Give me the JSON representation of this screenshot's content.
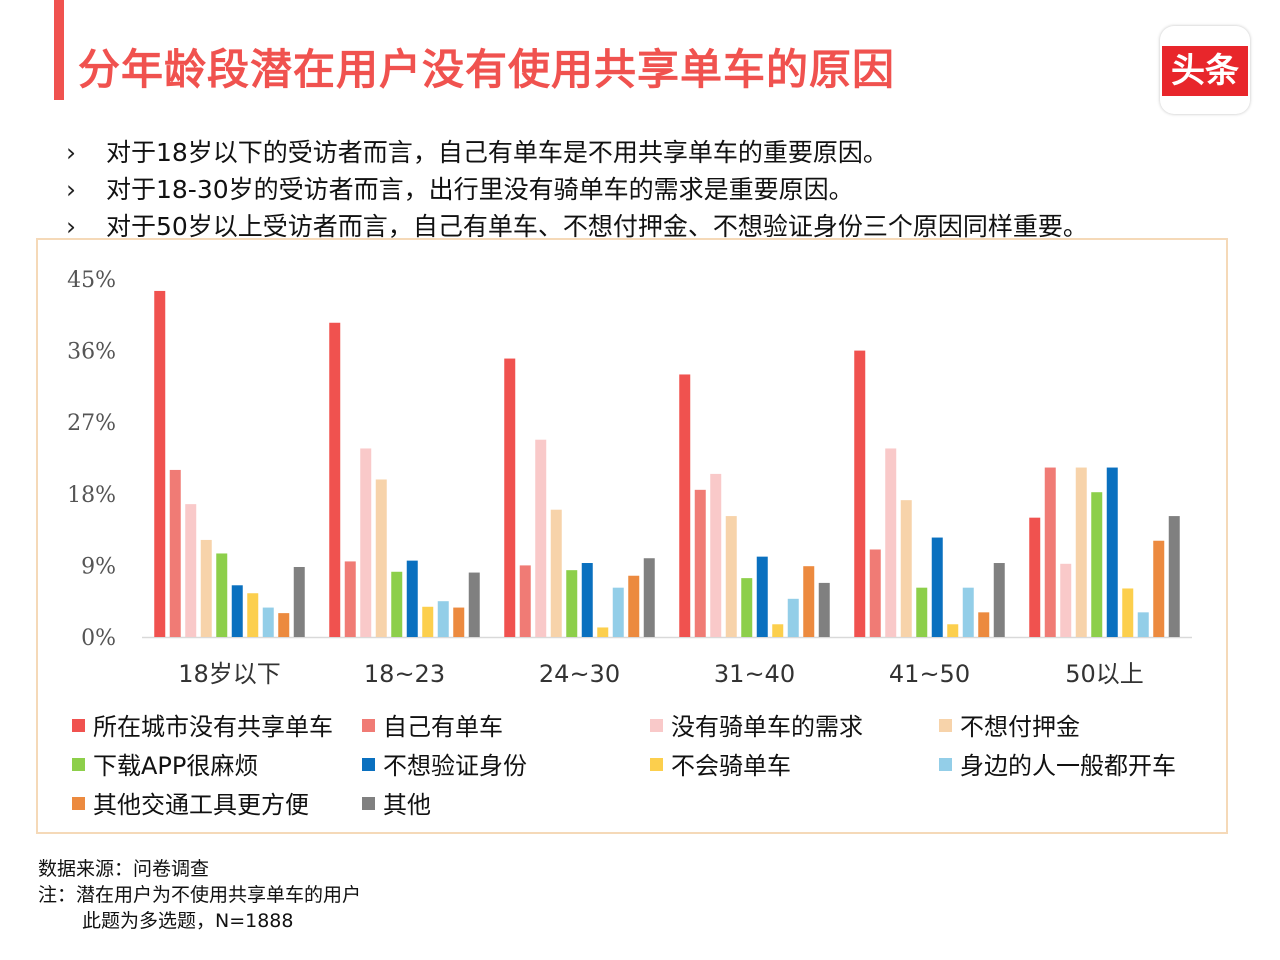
{
  "header": {
    "title": "分年龄段潜在用户没有使用共享单车的原因",
    "logo_text": "头条"
  },
  "bullets": [
    "对于18岁以下的受访者而言，自己有单车是不用共享单车的重要原因。",
    "对于18-30岁的受访者而言，出行里没有骑单车的需求是重要原因。",
    "对于50岁以上受访者而言，自己有单车、不想付押金、不想验证身份三个原因同样重要。"
  ],
  "bullet_marker": "›",
  "chart_data": {
    "type": "bar",
    "categories": [
      "18岁以下",
      "18~23",
      "24~30",
      "31~40",
      "41~50",
      "50以上"
    ],
    "y_ticks": [
      "0%",
      "9%",
      "18%",
      "27%",
      "36%",
      "45%"
    ],
    "ylim": [
      0,
      45
    ],
    "series": [
      {
        "name": "所在城市没有共享单车",
        "color": "#f0524f",
        "values": [
          43.5,
          39.5,
          35,
          33,
          36,
          15
        ]
      },
      {
        "name": "自己有单车",
        "color": "#f07b75",
        "values": [
          21,
          9.5,
          9,
          18.5,
          11,
          21.3
        ]
      },
      {
        "name": "没有骑单车的需求",
        "color": "#f9c9c9",
        "values": [
          16.7,
          23.7,
          24.8,
          20.5,
          23.7,
          9.2
        ]
      },
      {
        "name": "不想付押金",
        "color": "#f7d3aa",
        "values": [
          12.2,
          19.8,
          16,
          15.2,
          17.2,
          21.3
        ]
      },
      {
        "name": "下载APP很麻烦",
        "color": "#8dcf4a",
        "values": [
          10.5,
          8.2,
          8.4,
          7.4,
          6.2,
          18.2
        ]
      },
      {
        "name": "不想验证身份",
        "color": "#0a70bf",
        "values": [
          6.5,
          9.6,
          9.3,
          10.1,
          12.5,
          21.3
        ]
      },
      {
        "name": "不会骑单车",
        "color": "#fccf4d",
        "values": [
          5.5,
          3.8,
          1.2,
          1.6,
          1.6,
          6.1
        ]
      },
      {
        "name": "身边的人一般都开车",
        "color": "#93cee8",
        "values": [
          3.7,
          4.5,
          6.2,
          4.8,
          6.2,
          3.1
        ]
      },
      {
        "name": "其他交通工具更方便",
        "color": "#ec8a3f",
        "values": [
          3,
          3.7,
          7.7,
          8.9,
          3.1,
          12.1
        ]
      },
      {
        "name": "其他",
        "color": "#808080",
        "values": [
          8.8,
          8.1,
          9.9,
          6.8,
          9.3,
          15.2
        ]
      }
    ]
  },
  "footer": {
    "source": "数据来源：问卷调查",
    "note1": "注：潜在用户为不使用共享单车的用户",
    "note2": "此题为多选题，N=1888"
  }
}
